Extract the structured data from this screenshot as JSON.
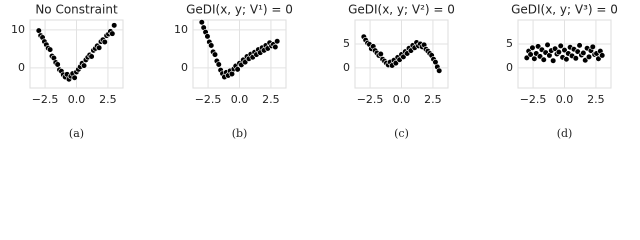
{
  "chart_data": [
    {
      "type": "scatter",
      "title": "No Constraint",
      "caption": "(a)",
      "color": "#000000",
      "grid": true,
      "x": [
        -3.0,
        -2.85,
        -2.7,
        -2.55,
        -2.4,
        -2.25,
        -2.1,
        -1.95,
        -1.8,
        -1.65,
        -1.5,
        -1.35,
        -1.2,
        -1.05,
        -0.9,
        -0.75,
        -0.6,
        -0.45,
        -0.3,
        -0.15,
        0.0,
        0.15,
        0.3,
        0.45,
        0.6,
        0.75,
        0.9,
        1.05,
        1.2,
        1.35,
        1.5,
        1.65,
        1.8,
        1.95,
        2.1,
        2.25,
        2.4,
        2.55,
        2.7,
        2.85,
        3.0
      ],
      "values": [
        9.8,
        8.5,
        8.0,
        6.9,
        6.1,
        5.2,
        4.8,
        3.1,
        2.6,
        1.4,
        0.9,
        -0.5,
        -0.9,
        -1.8,
        -2.4,
        -1.7,
        -3.0,
        -2.2,
        -1.5,
        -2.6,
        -1.1,
        -0.4,
        0.3,
        1.2,
        0.6,
        2.1,
        2.8,
        3.4,
        3.0,
        4.6,
        5.1,
        5.8,
        5.3,
        6.9,
        7.4,
        6.8,
        8.5,
        8.9,
        9.6,
        9.0,
        11.2
      ],
      "xlim": [
        -3.7,
        3.7
      ],
      "ylim": [
        -5.3,
        12.6
      ],
      "xticks": [
        {
          "value": -2.5,
          "label": "−2.5"
        },
        {
          "value": 0.0,
          "label": "0.0"
        },
        2.5
      ],
      "yticks": [
        0,
        10
      ]
    },
    {
      "type": "scatter",
      "title": "GeDI(x, y; V¹) = 0",
      "caption": "(b)",
      "color": "#000000",
      "grid": true,
      "x": [
        -3.0,
        -2.85,
        -2.7,
        -2.55,
        -2.4,
        -2.25,
        -2.1,
        -1.95,
        -1.8,
        -1.65,
        -1.5,
        -1.35,
        -1.2,
        -1.05,
        -0.9,
        -0.75,
        -0.6,
        -0.45,
        -0.3,
        -0.15,
        0.0,
        0.15,
        0.3,
        0.45,
        0.6,
        0.75,
        0.9,
        1.05,
        1.2,
        1.35,
        1.5,
        1.65,
        1.8,
        1.95,
        2.1,
        2.25,
        2.4,
        2.55,
        2.7,
        2.85,
        3.0
      ],
      "values": [
        12.0,
        10.6,
        9.4,
        8.3,
        6.8,
        5.9,
        4.2,
        3.5,
        1.8,
        0.9,
        -0.6,
        -1.5,
        -2.4,
        -1.2,
        -2.0,
        -0.8,
        -1.6,
        -0.3,
        0.5,
        -0.4,
        1.2,
        0.8,
        2.1,
        1.5,
        3.0,
        2.4,
        3.6,
        2.8,
        4.1,
        3.5,
        4.8,
        4.0,
        5.3,
        4.6,
        5.9,
        5.1,
        6.6,
        5.8,
        6.2,
        5.5,
        7.0
      ],
      "xlim": [
        -3.7,
        3.7
      ],
      "ylim": [
        -5.3,
        12.6
      ],
      "xticks": [
        {
          "value": -2.5,
          "label": "−2.5"
        },
        {
          "value": 0.0,
          "label": "0.0"
        },
        2.5
      ],
      "yticks": [
        0,
        10
      ]
    },
    {
      "type": "scatter",
      "title": "GeDI(x, y; V²) = 0",
      "caption": "(c)",
      "color": "#000000",
      "grid": true,
      "x": [
        -3.0,
        -2.85,
        -2.7,
        -2.55,
        -2.4,
        -2.25,
        -2.1,
        -1.95,
        -1.8,
        -1.65,
        -1.5,
        -1.35,
        -1.2,
        -1.05,
        -0.9,
        -0.75,
        -0.6,
        -0.45,
        -0.3,
        -0.15,
        0.0,
        0.15,
        0.3,
        0.45,
        0.6,
        0.75,
        0.9,
        1.05,
        1.2,
        1.35,
        1.5,
        1.65,
        1.8,
        1.95,
        2.1,
        2.25,
        2.4,
        2.55,
        2.7,
        2.85,
        3.0
      ],
      "values": [
        6.5,
        5.8,
        5.2,
        4.9,
        4.0,
        4.5,
        3.6,
        3.1,
        2.6,
        2.9,
        1.8,
        1.4,
        1.0,
        0.6,
        1.2,
        0.5,
        1.6,
        1.0,
        2.2,
        1.7,
        2.8,
        2.3,
        3.4,
        3.0,
        4.1,
        3.6,
        4.7,
        4.2,
        5.3,
        4.6,
        5.0,
        4.4,
        4.8,
        3.9,
        3.5,
        3.0,
        2.6,
        1.8,
        1.2,
        0.2,
        -0.6
      ],
      "xlim": [
        -3.7,
        3.7
      ],
      "ylim": [
        -4.2,
        10
      ],
      "xticks": [
        {
          "value": -2.5,
          "label": "−2.5"
        },
        {
          "value": 0.0,
          "label": "0.0"
        },
        2.5
      ],
      "yticks": [
        0,
        5
      ]
    },
    {
      "type": "scatter",
      "title": "GeDI(x, y; V³) = 0",
      "caption": "(d)",
      "color": "#000000",
      "grid": true,
      "x": [
        -3.0,
        -2.85,
        -2.7,
        -2.55,
        -2.4,
        -2.25,
        -2.1,
        -1.95,
        -1.8,
        -1.65,
        -1.5,
        -1.35,
        -1.2,
        -1.05,
        -0.9,
        -0.75,
        -0.6,
        -0.45,
        -0.3,
        -0.15,
        0.0,
        0.15,
        0.3,
        0.45,
        0.6,
        0.75,
        0.9,
        1.05,
        1.2,
        1.35,
        1.5,
        1.65,
        1.8,
        1.95,
        2.1,
        2.25,
        2.4,
        2.55,
        2.7,
        2.85,
        3.0
      ],
      "values": [
        2.1,
        3.5,
        2.8,
        4.2,
        1.9,
        3.0,
        4.5,
        2.4,
        3.8,
        1.7,
        3.2,
        4.8,
        2.6,
        3.6,
        1.5,
        4.0,
        2.9,
        3.3,
        4.6,
        2.2,
        3.7,
        1.8,
        3.0,
        4.3,
        2.5,
        3.9,
        2.0,
        3.4,
        4.7,
        2.7,
        3.1,
        1.6,
        4.1,
        2.3,
        3.6,
        4.4,
        2.8,
        3.0,
        1.9,
        3.5,
        2.6
      ],
      "xlim": [
        -3.7,
        3.7
      ],
      "ylim": [
        -4.2,
        10
      ],
      "xticks": [
        {
          "value": -2.5,
          "label": "−2.5"
        },
        {
          "value": 0.0,
          "label": "0.0"
        },
        2.5
      ],
      "yticks": [
        0,
        5
      ]
    }
  ]
}
